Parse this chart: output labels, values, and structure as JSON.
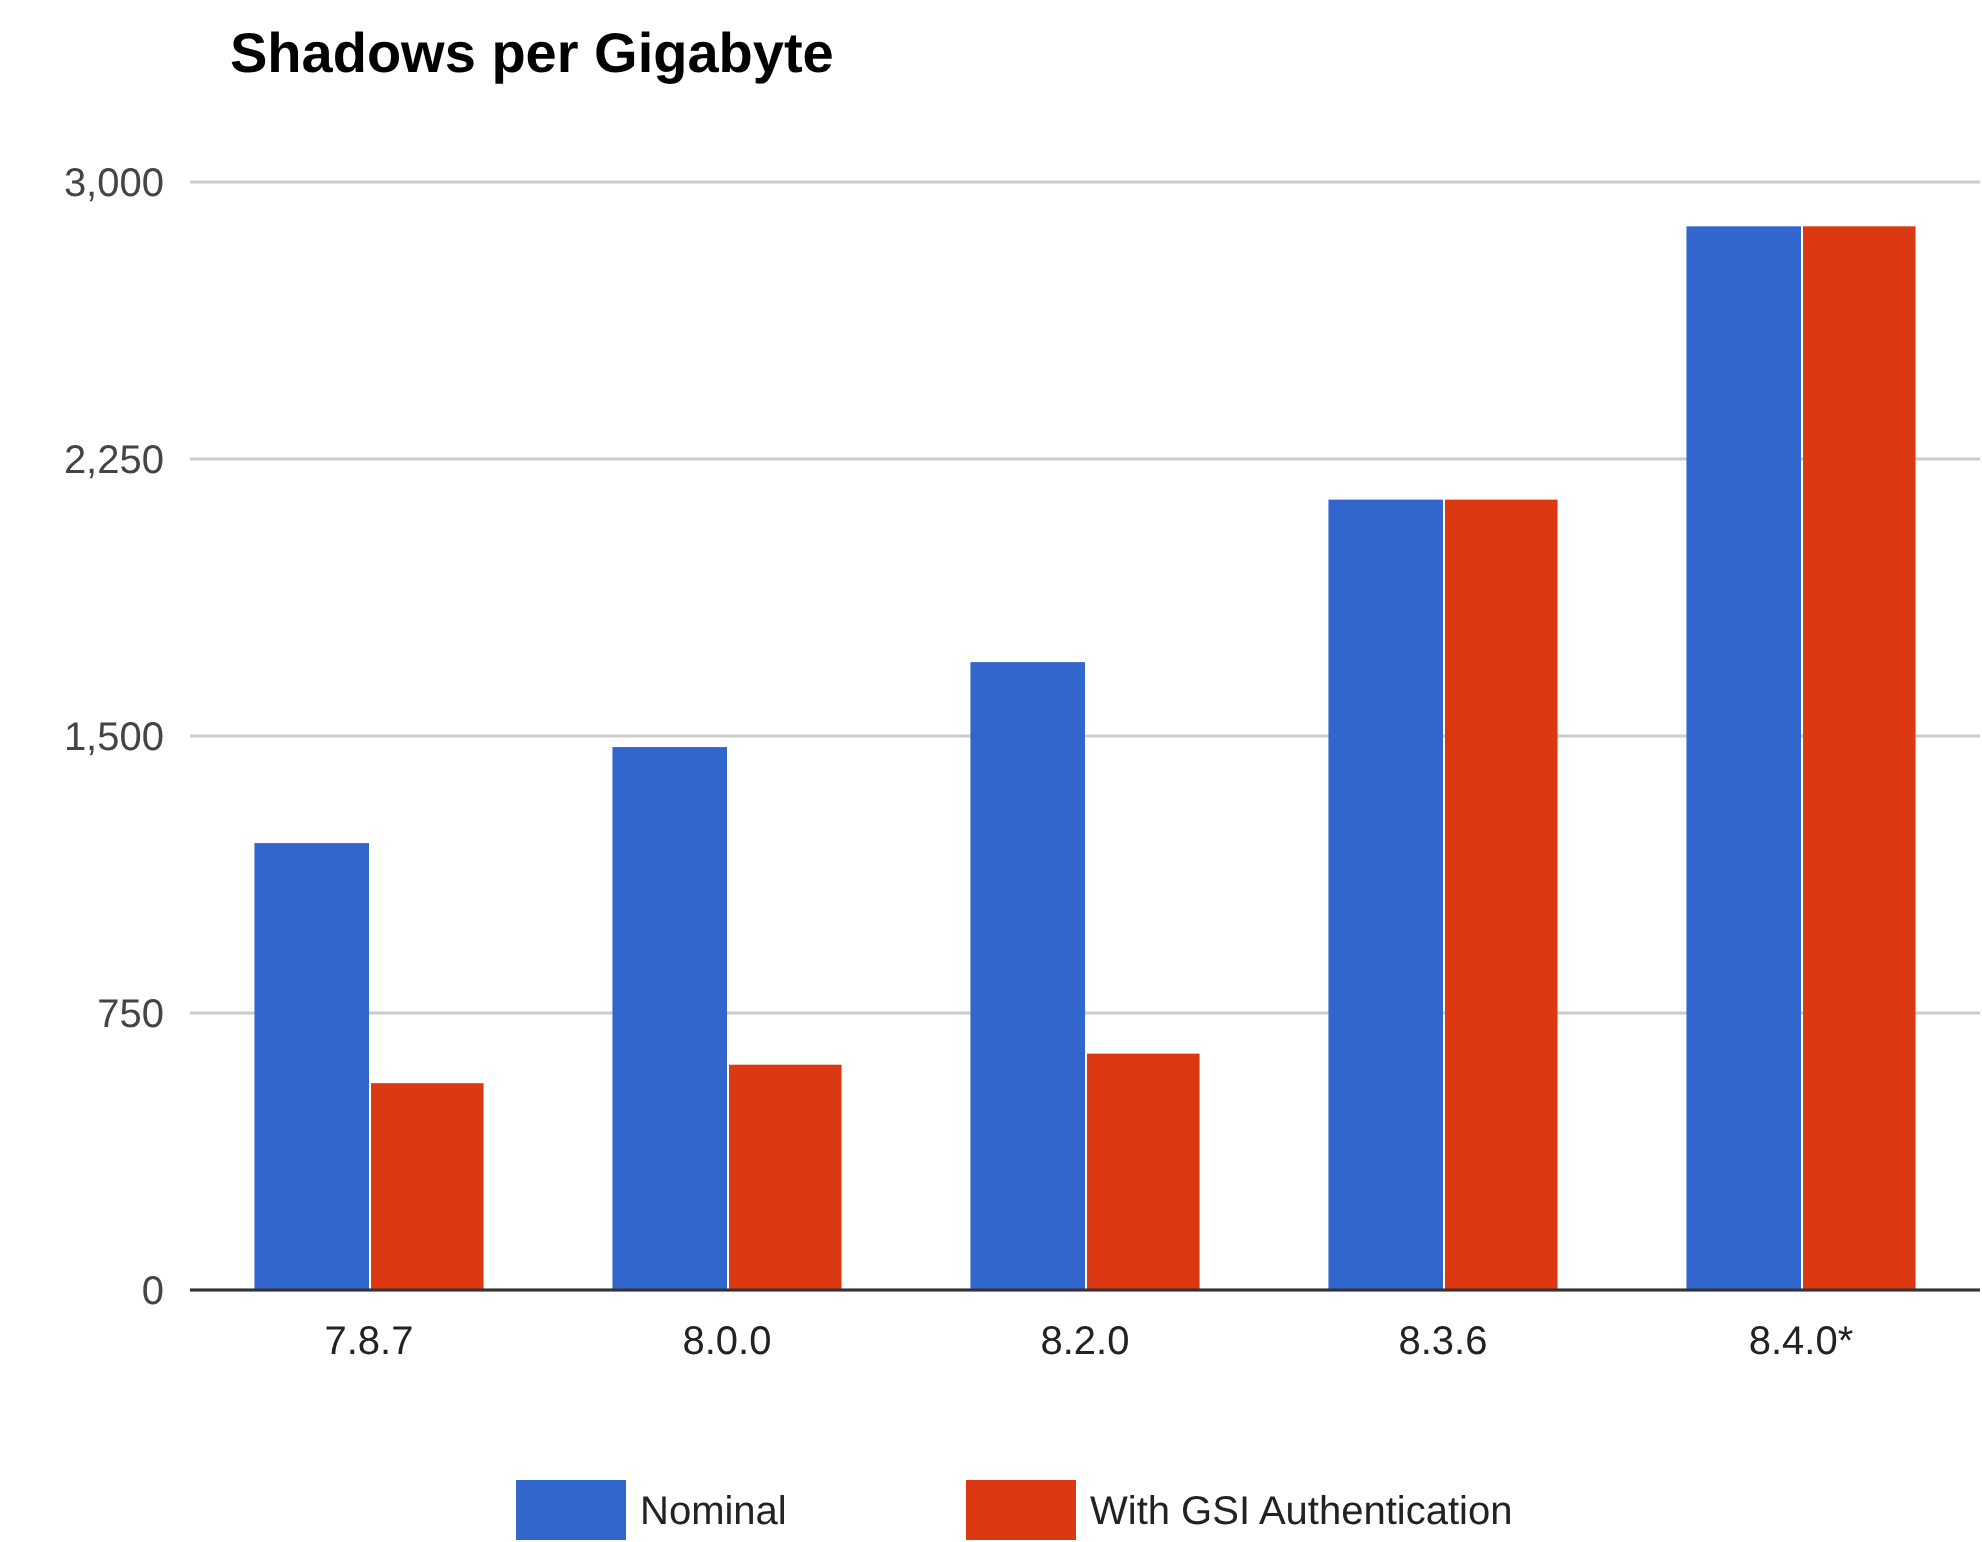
{
  "chart_data": {
    "type": "bar",
    "title": "Shadows per Gigabyte",
    "categories": [
      "7.8.7",
      "8.0.0",
      "8.2.0",
      "8.3.6",
      "8.4.0*"
    ],
    "series": [
      {
        "name": "Nominal",
        "color": "#3366cc",
        "values": [
          1210,
          1470,
          1700,
          2140,
          2880
        ]
      },
      {
        "name": "With GSI Authentication",
        "color": "#dc3912",
        "values": [
          560,
          610,
          640,
          2140,
          2880
        ]
      }
    ],
    "ylim": [
      0,
      3000
    ],
    "yticks": [
      0,
      {
        "value": 750,
        "label": "750"
      },
      {
        "value": 1500,
        "label": "1,500"
      },
      {
        "value": 2250,
        "label": "2,250"
      },
      {
        "value": 3000,
        "label": "3,000"
      }
    ],
    "grid": "y",
    "legend": "bottom"
  }
}
